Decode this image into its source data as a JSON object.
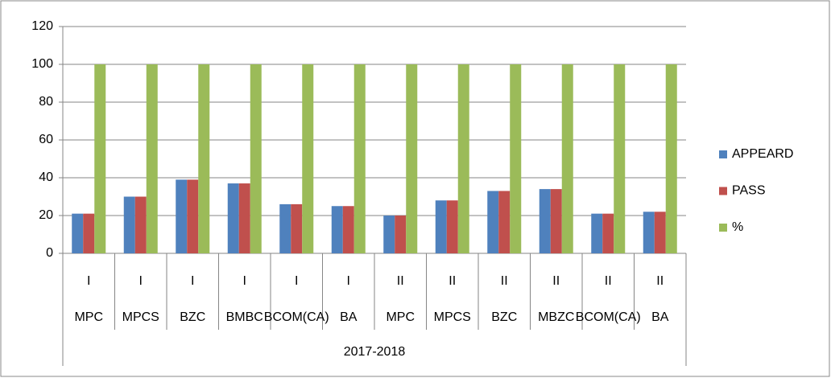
{
  "chart_data": {
    "type": "bar",
    "categories": [
      "MPC",
      "MPCS",
      "BZC",
      "BMBC",
      "BCOM(CA)",
      "BA",
      "MPC",
      "MPCS",
      "BZC",
      "MBZC",
      "BCOM(CA)",
      "BA"
    ],
    "category_years": [
      "I",
      "I",
      "I",
      "I",
      "I",
      "I",
      "II",
      "II",
      "II",
      "II",
      "II",
      "II"
    ],
    "category_session": "2017-2018",
    "series": [
      {
        "name": "APPEARD",
        "color": "#4f81bd",
        "values": [
          21,
          30,
          39,
          37,
          26,
          25,
          20,
          28,
          33,
          34,
          21,
          22
        ]
      },
      {
        "name": "PASS",
        "color": "#c0504d",
        "values": [
          21,
          30,
          39,
          37,
          26,
          25,
          20,
          28,
          33,
          34,
          21,
          22
        ]
      },
      {
        "name": "%",
        "color": "#9bbb59",
        "values": [
          100,
          100,
          100,
          100,
          100,
          100,
          100,
          100,
          100,
          100,
          100,
          100
        ]
      }
    ],
    "ylim": [
      0,
      120
    ],
    "yticks": [
      0,
      20,
      40,
      60,
      80,
      100,
      120
    ],
    "grid": true,
    "legend": "right"
  }
}
